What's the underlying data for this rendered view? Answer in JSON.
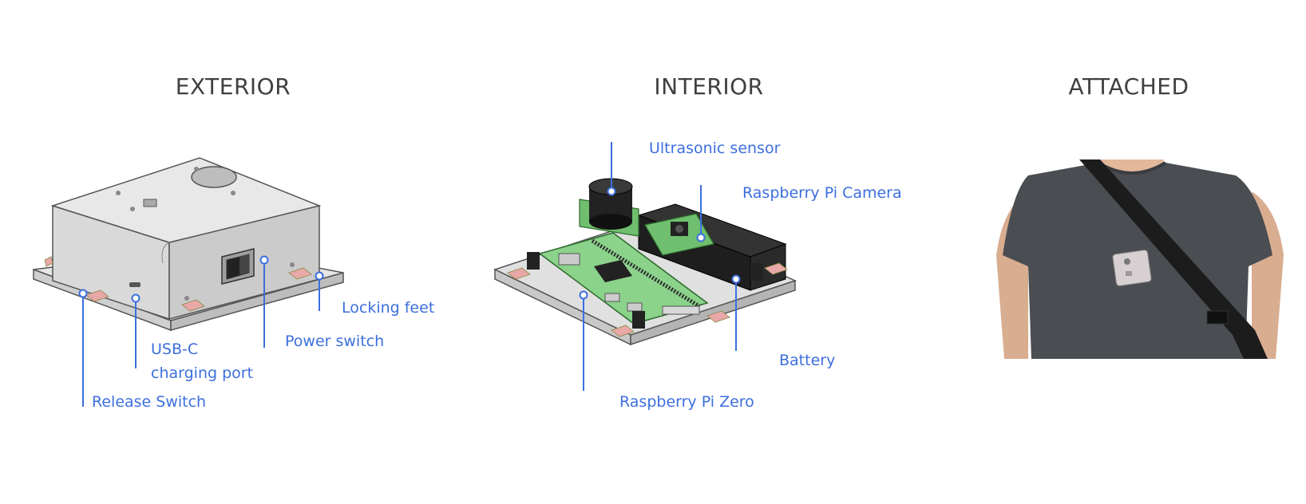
{
  "headings": {
    "exterior": "EXTERIOR",
    "interior": "INTERIOR",
    "attached": "ATTACHED"
  },
  "exterior_labels": {
    "locking_feet": "Locking feet",
    "power_switch": "Power switch",
    "usb_c_line1": "USB-C",
    "usb_c_line2": "charging port",
    "release_switch": "Release Switch"
  },
  "interior_labels": {
    "ultrasonic_sensor": "Ultrasonic sensor",
    "raspberry_pi_camera": "Raspberry Pi Camera",
    "battery": "Battery",
    "raspberry_pi_zero": "Raspberry Pi Zero"
  },
  "colors": {
    "callout": "#3c6fde",
    "heading": "#3f3f3f",
    "pcb": "#8bd28b",
    "foot": "#e9a8a8"
  }
}
